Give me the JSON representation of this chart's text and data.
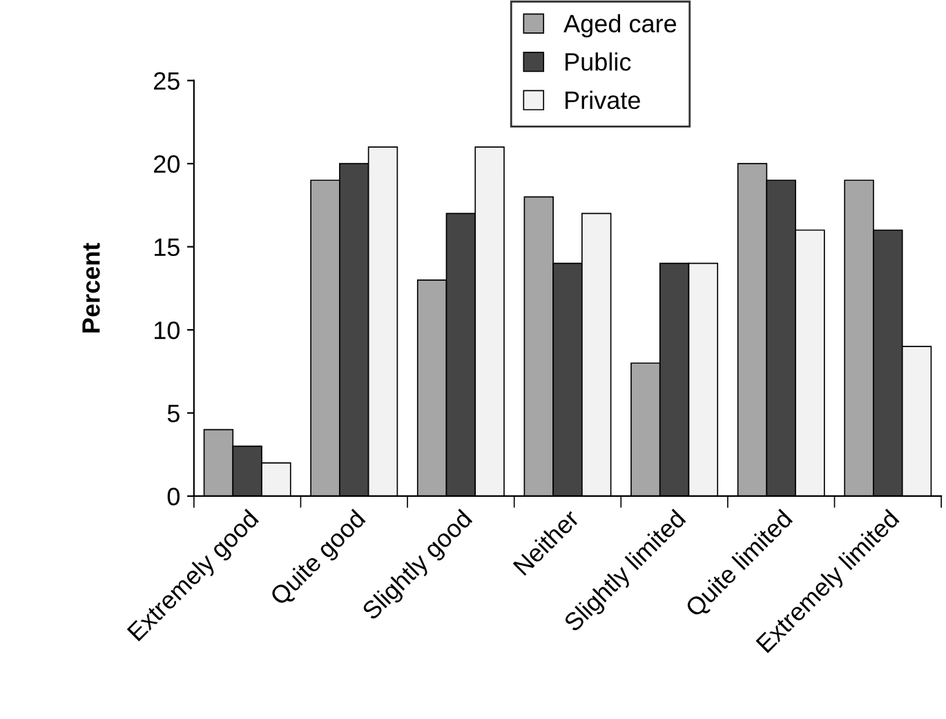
{
  "chart_data": {
    "type": "bar",
    "ylabel": "Percent",
    "categories": [
      "Extremely good",
      "Quite good",
      "Slightly good",
      "Neither",
      "Slightly limited",
      "Quite limited",
      "Extremely limited"
    ],
    "series": [
      {
        "name": "Aged care",
        "color": "#a6a6a6",
        "values": [
          4,
          19,
          13,
          18,
          8,
          20,
          19
        ]
      },
      {
        "name": "Public",
        "color": "#454545",
        "values": [
          3,
          20,
          17,
          14,
          14,
          19,
          16
        ]
      },
      {
        "name": "Private",
        "color": "#f2f2f2",
        "values": [
          2,
          21,
          21,
          17,
          14,
          16,
          9
        ]
      }
    ],
    "ylim": [
      0,
      25
    ],
    "yticks": [
      0,
      5,
      10,
      15,
      20,
      25
    ],
    "grid": false,
    "legend": "top right"
  }
}
